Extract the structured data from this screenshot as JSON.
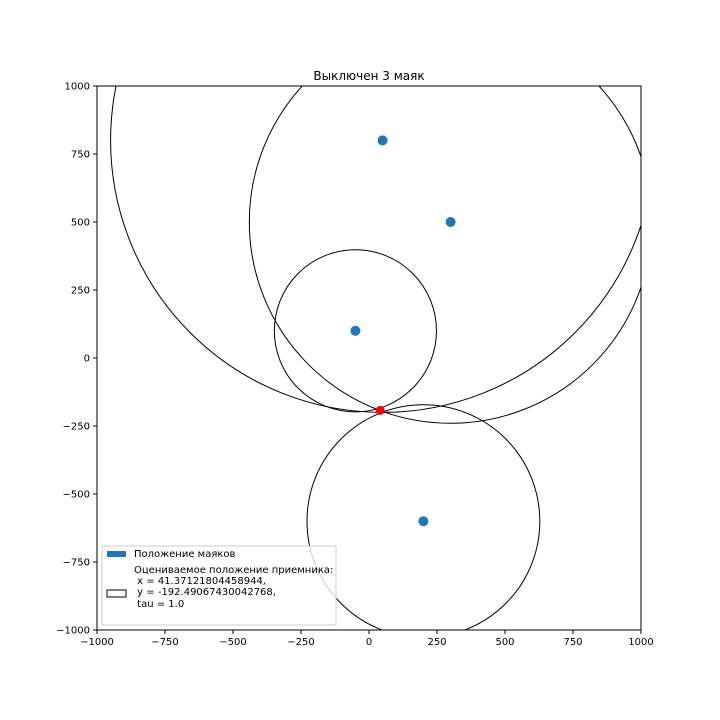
{
  "chart_data": {
    "type": "scatter",
    "title": "Выключен 3 маяк",
    "xlabel": "",
    "ylabel": "",
    "xlim": [
      -1000,
      1000
    ],
    "ylim": [
      -1000,
      1000
    ],
    "xticks": [
      -1000,
      -750,
      -500,
      -250,
      0,
      250,
      500,
      750,
      1000
    ],
    "yticks": [
      -1000,
      -750,
      -500,
      -250,
      0,
      250,
      500,
      750,
      1000
    ],
    "xtick_labels": [
      "−1000",
      "−750",
      "−500",
      "−250",
      "0",
      "250",
      "500",
      "750",
      "1000"
    ],
    "ytick_labels": [
      "−1000",
      "−750",
      "−500",
      "−250",
      "0",
      "250",
      "500",
      "750",
      "1000"
    ],
    "grid": false,
    "legend_position": "lower-left",
    "beacons": [
      {
        "x": 50,
        "y": 800
      },
      {
        "x": 300,
        "y": 500
      },
      {
        "x": -50,
        "y": 100
      },
      {
        "x": 200,
        "y": -600
      }
    ],
    "circles": [
      {
        "cx": 50,
        "cy": 800,
        "r": 1000
      },
      {
        "cx": 300,
        "cy": 500,
        "r": 740
      },
      {
        "cx": -50,
        "cy": 100,
        "r": 298
      },
      {
        "cx": 200,
        "cy": -600,
        "r": 428
      }
    ],
    "receiver": {
      "x": 41.37121804458944,
      "y": -192.49067430042768
    },
    "colors": {
      "beacon": "#1f77b4",
      "receiver": "#ff0000",
      "circle": "#000000"
    },
    "legend": [
      {
        "label": "Положение маяков"
      },
      {
        "label_lines": [
          "Оцениваемое положение приемника:",
          " x = 41.37121804458944,",
          " y = -192.49067430042768,",
          " tau = 1.0"
        ]
      }
    ]
  }
}
